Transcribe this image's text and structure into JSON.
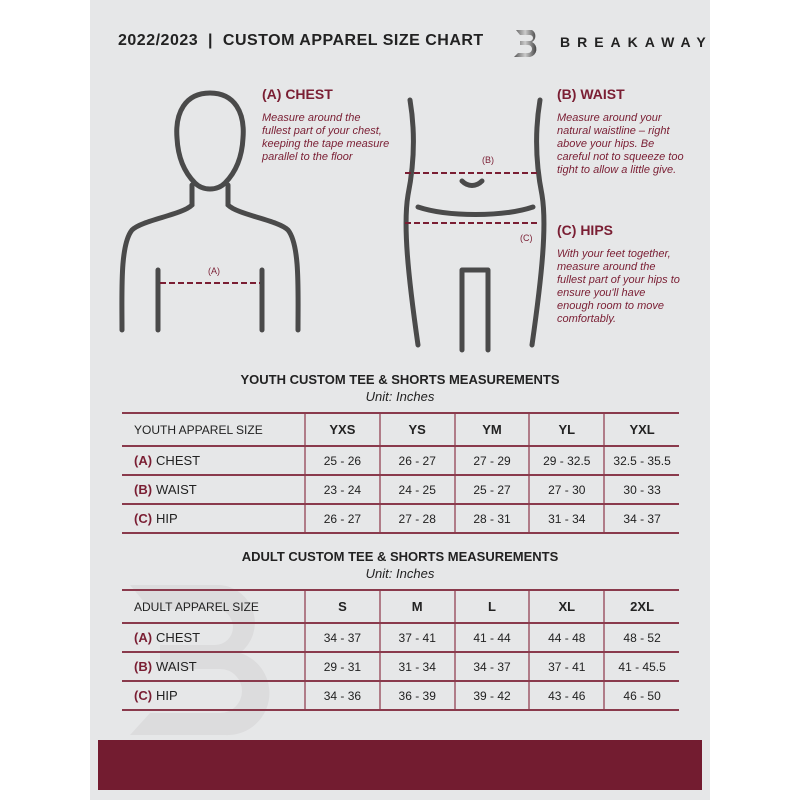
{
  "header": {
    "title": "2022/2023  |  CUSTOM APPAREL SIZE CHART",
    "brand": "BREAKAWAY",
    "logo_letter": "B"
  },
  "colors": {
    "accent": "#7a1e33",
    "background": "#e6e7e8",
    "band": "#731c30"
  },
  "chest": {
    "heading": "(A) CHEST",
    "text": "Measure around the fullest part of your chest, keeping the tape measure parallel to the floor",
    "marker": "(A)"
  },
  "waist": {
    "heading": "(B) WAIST",
    "text": "Measure around your natural waistline – right above your hips. Be careful not to squeeze too tight to allow a little give.",
    "marker": "(B)"
  },
  "hips": {
    "heading": "(C) HIPS",
    "text": "With your feet together, measure around the fullest part of your hips to ensure you'll have enough room to move comfortably.",
    "marker": "(C)"
  },
  "youth": {
    "title": "YOUTH CUSTOM TEE & SHORTS MEASUREMENTS",
    "unit": "Unit: Inches",
    "size_label": "YOUTH APPAREL SIZE",
    "sizes": [
      "YXS",
      "YS",
      "YM",
      "YL",
      "YXL"
    ],
    "rows": [
      {
        "letter": "(A)",
        "name": "CHEST",
        "values": [
          "25 - 26",
          "26 - 27",
          "27 - 29",
          "29 - 32.5",
          "32.5 - 35.5"
        ]
      },
      {
        "letter": "(B)",
        "name": "WAIST",
        "values": [
          "23 - 24",
          "24 - 25",
          "25 - 27",
          "27 - 30",
          "30 - 33"
        ]
      },
      {
        "letter": "(C)",
        "name": "HIP",
        "values": [
          "26 - 27",
          "27 - 28",
          "28 - 31",
          "31 - 34",
          "34 - 37"
        ]
      }
    ]
  },
  "adult": {
    "title": "ADULT CUSTOM TEE & SHORTS MEASUREMENTS",
    "unit": "Unit: Inches",
    "size_label": "ADULT APPAREL SIZE",
    "sizes": [
      "S",
      "M",
      "L",
      "XL",
      "2XL"
    ],
    "rows": [
      {
        "letter": "(A)",
        "name": "CHEST",
        "values": [
          "34 - 37",
          "37 - 41",
          "41 - 44",
          "44 - 48",
          "48 - 52"
        ]
      },
      {
        "letter": "(B)",
        "name": "WAIST",
        "values": [
          "29 - 31",
          "31 - 34",
          "34 - 37",
          "37 - 41",
          "41 - 45.5"
        ]
      },
      {
        "letter": "(C)",
        "name": "HIP",
        "values": [
          "34 - 36",
          "36 - 39",
          "39 - 42",
          "43 - 46",
          "46 - 50"
        ]
      }
    ]
  }
}
